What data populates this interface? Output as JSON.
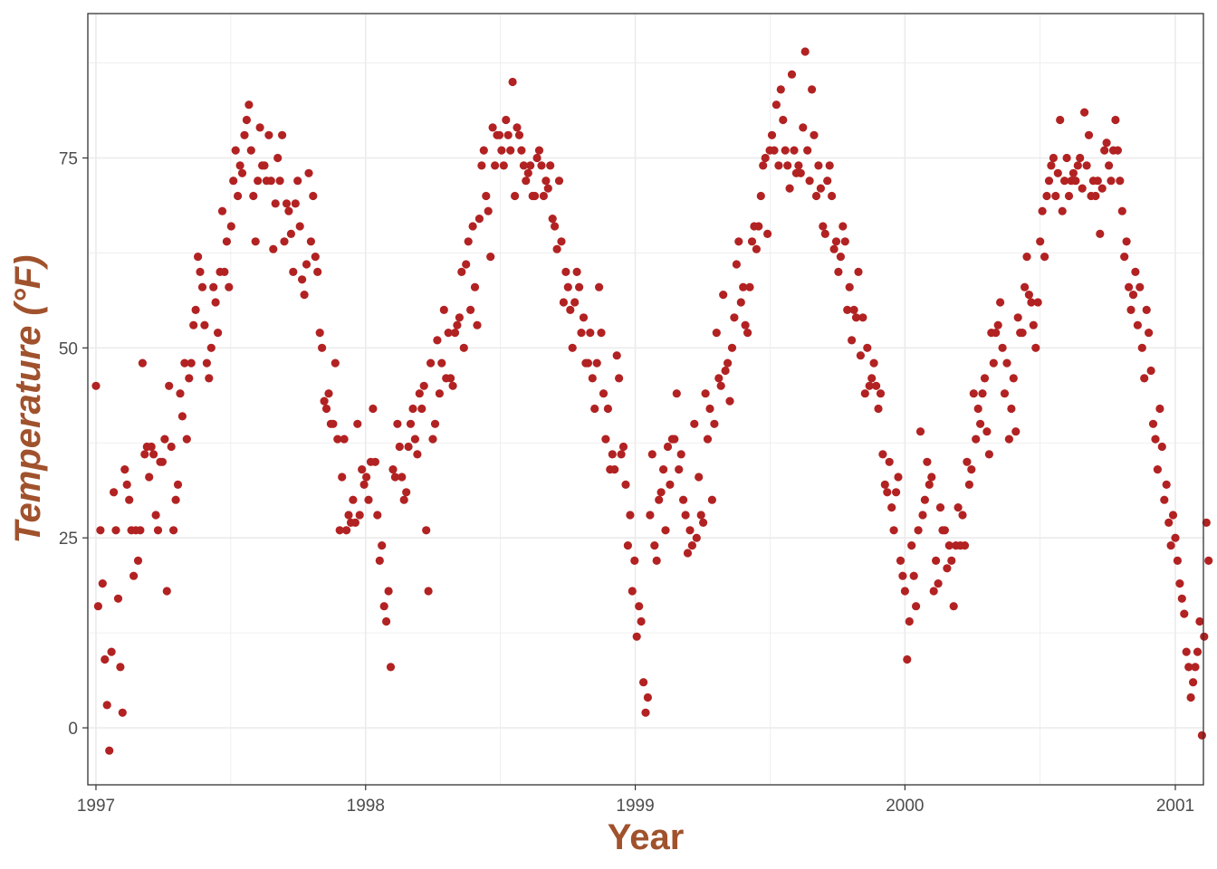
{
  "colors": {
    "points": "#b22222",
    "axis_title": "#a0522d",
    "grid": "#ebebeb",
    "panel_border": "#333333",
    "tick_text": "#4d4d4d"
  },
  "chart_data": {
    "type": "scatter",
    "xlabel": "Year",
    "ylabel": "Temperature (°F)",
    "xlim": [
      "1996-12-21",
      "2001-02-08"
    ],
    "ylim": [
      -7.5,
      94
    ],
    "x_ticks": [
      "1997",
      "1998",
      "1999",
      "2000",
      "2001"
    ],
    "y_ticks": [
      0,
      25,
      50,
      75
    ],
    "grid": true,
    "legend": "none",
    "daily_reading_every_3_days": true,
    "series": [
      {
        "x_start": "1997-01-01",
        "x_step_days": 3,
        "y": [
          45,
          16,
          26,
          19,
          9,
          3,
          -3,
          10,
          31,
          26,
          17,
          8,
          2,
          34,
          32,
          30,
          26,
          20,
          26,
          22,
          26,
          48,
          36,
          37,
          33,
          37,
          36,
          28,
          26,
          35,
          35,
          38,
          18,
          45,
          37,
          26,
          30,
          32,
          44,
          41,
          48,
          38,
          46,
          48,
          53,
          55,
          62,
          60,
          58,
          53,
          48,
          46,
          50,
          58,
          56,
          52,
          60,
          68,
          60,
          64,
          58,
          66,
          72,
          76,
          70,
          74,
          73,
          78,
          80,
          82,
          76,
          70,
          64,
          72,
          79,
          74,
          74,
          72,
          78,
          72,
          63,
          69,
          75,
          72,
          78,
          64,
          69,
          68,
          65,
          60,
          69,
          72,
          66,
          59,
          57,
          61,
          73,
          64,
          70,
          62,
          60,
          52,
          50,
          43,
          42,
          44,
          40,
          40,
          48,
          38,
          26,
          33,
          38,
          26,
          28,
          27,
          30,
          27,
          40,
          28,
          34,
          32,
          33,
          30,
          35,
          42,
          35,
          28,
          22,
          24,
          16,
          14,
          18,
          8,
          34,
          33,
          40,
          37,
          33,
          30,
          31,
          37,
          40,
          42,
          38,
          36,
          44,
          42,
          45,
          26,
          18,
          48,
          38,
          40,
          51,
          44,
          48,
          55,
          46,
          52,
          46,
          45,
          52,
          53,
          54,
          60,
          50,
          61,
          64,
          55,
          66,
          58,
          53,
          67,
          74,
          76,
          70,
          68,
          62,
          79,
          74,
          78,
          78,
          76,
          74,
          80,
          78,
          76,
          85,
          70,
          79,
          78,
          76,
          74,
          72,
          73,
          74,
          70,
          70,
          75,
          76,
          74,
          70,
          72,
          71,
          74,
          67,
          66,
          63,
          72,
          64,
          56,
          60,
          58,
          55,
          50,
          56,
          60,
          58,
          52,
          54,
          48,
          48,
          52,
          46,
          42,
          48,
          58,
          52,
          44,
          38,
          42,
          34,
          36,
          34,
          49,
          46,
          36,
          37,
          32,
          24,
          28,
          18,
          22,
          12,
          16,
          14,
          6,
          2,
          4,
          28,
          36,
          24,
          22,
          30,
          31,
          34,
          26,
          37,
          32,
          38,
          38,
          44,
          34,
          36,
          30,
          28,
          23,
          26,
          24,
          40,
          25,
          33,
          28,
          27,
          44,
          38,
          42,
          30,
          40,
          52,
          46,
          45,
          57,
          47,
          48,
          43,
          50,
          54,
          61,
          64,
          56,
          58,
          53,
          52,
          58,
          64,
          66,
          63,
          66,
          70,
          74,
          75,
          65,
          76,
          78,
          76,
          82,
          74,
          84,
          80,
          76,
          74,
          71,
          86,
          76,
          73,
          74,
          73,
          79,
          89,
          76,
          72,
          84,
          78,
          70,
          74,
          71,
          66,
          65,
          72,
          74,
          70,
          63,
          64,
          60,
          62,
          66,
          64,
          55,
          58,
          51,
          55,
          54,
          60,
          49,
          54,
          44,
          50,
          45,
          46,
          48,
          45,
          42,
          44,
          36,
          32,
          31,
          35,
          29,
          26,
          31,
          33,
          22,
          20,
          18,
          9,
          14,
          24,
          20,
          16,
          26,
          39,
          28,
          30,
          35,
          32,
          33,
          18,
          22,
          19,
          29,
          26,
          26,
          21,
          24,
          22,
          16,
          24,
          29,
          24,
          28,
          24,
          35,
          32,
          34,
          44,
          38,
          42,
          40,
          44,
          46,
          39,
          36,
          52,
          48,
          52,
          53,
          56,
          50,
          44,
          48,
          38,
          42,
          46,
          39,
          54,
          52,
          52,
          58,
          62,
          57,
          56,
          53,
          50,
          56,
          64,
          68,
          62,
          70,
          72,
          74,
          75,
          70,
          73,
          80,
          68,
          72,
          75,
          70,
          72,
          73,
          72,
          74,
          75,
          71,
          81,
          74,
          78,
          70,
          72,
          70,
          72,
          65,
          71,
          76,
          77,
          74,
          72,
          76,
          80,
          76,
          72,
          68,
          62,
          64,
          58,
          55,
          57,
          60,
          53,
          58,
          50,
          46,
          55,
          52,
          47,
          40,
          38,
          34,
          42,
          37,
          30,
          32,
          27,
          24,
          28,
          25,
          22,
          19,
          17,
          15,
          10,
          8,
          4,
          6,
          8,
          10,
          14,
          -1,
          12,
          27,
          22
        ]
      }
    ]
  }
}
